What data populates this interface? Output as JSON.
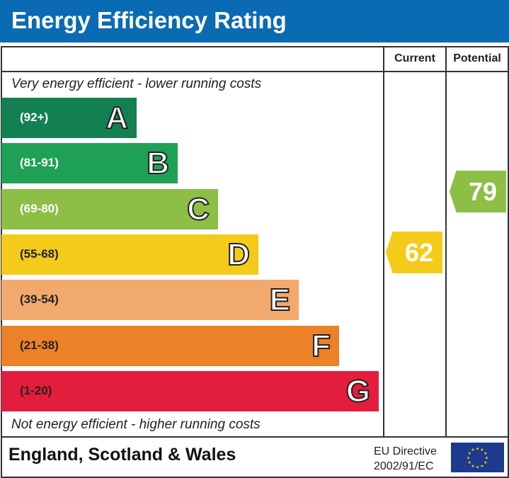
{
  "title": "Energy Efficiency Rating",
  "columns": {
    "current": "Current",
    "potential": "Potential"
  },
  "top_note": "Very energy efficient - lower running costs",
  "bottom_note": "Not energy efficient - higher running costs",
  "chart_data": {
    "type": "bar",
    "bands": [
      {
        "letter": "A",
        "range": "(92+)",
        "color": "#138052"
      },
      {
        "letter": "B",
        "range": "(81-91)",
        "color": "#1ea157"
      },
      {
        "letter": "C",
        "range": "(69-80)",
        "color": "#8dbe45"
      },
      {
        "letter": "D",
        "range": "(55-68)",
        "color": "#f5cb1a"
      },
      {
        "letter": "E",
        "range": "(39-54)",
        "color": "#f2a96d"
      },
      {
        "letter": "F",
        "range": "(21-38)",
        "color": "#ec8128"
      },
      {
        "letter": "G",
        "range": "(1-20)",
        "color": "#e31d3c"
      }
    ],
    "current": {
      "value": "62",
      "band": "D",
      "color": "#f5cb1a"
    },
    "potential": {
      "value": "79",
      "band": "C",
      "color": "#8dbe45"
    }
  },
  "footer": {
    "region": "England, Scotland & Wales",
    "directive_line1": "EU Directive",
    "directive_line2": "2002/91/EC"
  },
  "header_color": "#0a6ab2"
}
